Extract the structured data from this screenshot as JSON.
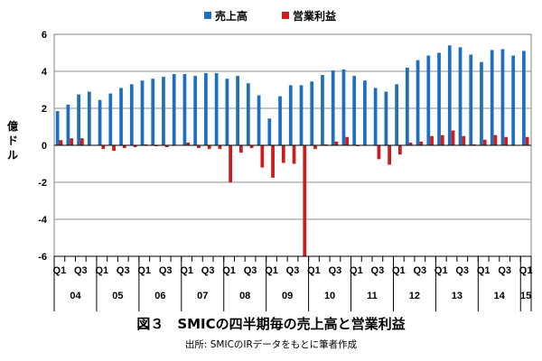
{
  "chart_data": {
    "type": "bar",
    "ylabel": "億ドル",
    "ylim": [
      -6,
      6
    ],
    "yticks": [
      6,
      4,
      2,
      0,
      -2,
      -4,
      -6
    ],
    "grid": true,
    "legend_position": "top-center",
    "quarter_labels": [
      "Q1",
      "Q3",
      "Q1",
      "Q3",
      "Q1",
      "Q3",
      "Q1",
      "Q3",
      "Q1",
      "Q3",
      "Q1",
      "Q3",
      "Q1",
      "Q3",
      "Q1",
      "Q3",
      "Q1",
      "Q3",
      "Q1",
      "Q3",
      "Q1",
      "Q3",
      "Q1"
    ],
    "year_labels": [
      "04",
      "05",
      "06",
      "07",
      "08",
      "09",
      "10",
      "11",
      "12",
      "13",
      "14",
      "15"
    ],
    "categories": [
      "04Q1",
      "04Q2",
      "04Q3",
      "04Q4",
      "05Q1",
      "05Q2",
      "05Q3",
      "05Q4",
      "06Q1",
      "06Q2",
      "06Q3",
      "06Q4",
      "07Q1",
      "07Q2",
      "07Q3",
      "07Q4",
      "08Q1",
      "08Q2",
      "08Q3",
      "08Q4",
      "09Q1",
      "09Q2",
      "09Q3",
      "09Q4",
      "10Q1",
      "10Q2",
      "10Q3",
      "10Q4",
      "11Q1",
      "11Q2",
      "11Q3",
      "11Q4",
      "12Q1",
      "12Q2",
      "12Q3",
      "12Q4",
      "13Q1",
      "13Q2",
      "13Q3",
      "13Q4",
      "14Q1",
      "14Q2",
      "14Q3",
      "14Q4",
      "15Q1"
    ],
    "series": [
      {
        "name": "売上高",
        "color": "#1f6fc0",
        "values": [
          1.85,
          2.2,
          2.75,
          2.9,
          2.45,
          2.8,
          3.1,
          3.3,
          3.5,
          3.6,
          3.7,
          3.85,
          3.85,
          3.75,
          3.9,
          3.9,
          3.6,
          3.75,
          3.35,
          2.7,
          1.45,
          2.65,
          3.25,
          3.25,
          3.45,
          3.8,
          4.05,
          4.1,
          3.75,
          3.5,
          3.1,
          2.9,
          3.3,
          4.2,
          4.6,
          4.85,
          5.0,
          5.4,
          5.3,
          4.9,
          4.5,
          5.15,
          5.2,
          4.85,
          5.1
        ]
      },
      {
        "name": "営業利益",
        "color": "#cc1c1c",
        "values": [
          0.28,
          0.38,
          0.38,
          0.0,
          -0.2,
          -0.3,
          -0.15,
          -0.1,
          0.05,
          -0.05,
          -0.1,
          0.0,
          0.15,
          -0.15,
          -0.2,
          -0.2,
          -2.0,
          -0.4,
          -0.15,
          -1.2,
          -1.75,
          -0.95,
          -1.0,
          -6.0,
          -0.2,
          0.05,
          0.2,
          0.45,
          -0.05,
          0.0,
          -0.75,
          -1.05,
          -0.5,
          0.15,
          0.2,
          0.5,
          0.55,
          0.8,
          0.5,
          0.05,
          0.3,
          0.55,
          0.45,
          0.0,
          0.45
        ]
      }
    ]
  },
  "caption": {
    "title": "図３　SMICの四半期毎の売上高と営業利益",
    "source": "出所: SMICのIRデータをもとに筆者作成"
  }
}
